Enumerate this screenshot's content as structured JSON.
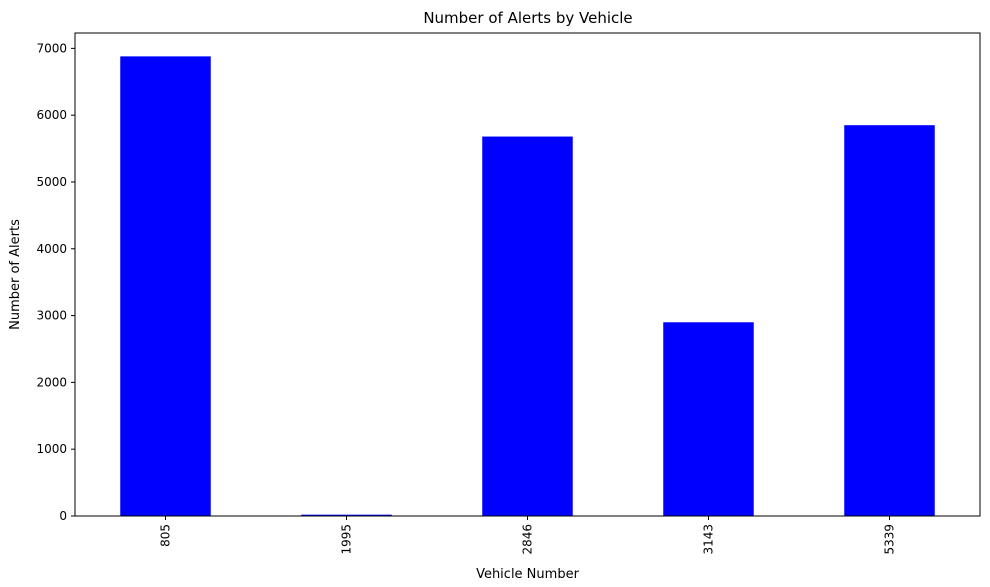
{
  "chart_data": {
    "type": "bar",
    "title": "Number of Alerts by Vehicle",
    "xlabel": "Vehicle Number",
    "ylabel": "Number of Alerts",
    "categories": [
      "805",
      "1995",
      "2846",
      "3143",
      "5339"
    ],
    "values": [
      6880,
      20,
      5680,
      2900,
      5850
    ],
    "ylim": [
      0,
      7230
    ],
    "yticks": [
      0,
      1000,
      2000,
      3000,
      4000,
      5000,
      6000,
      7000
    ],
    "bar_color": "#0000ff",
    "grid": false,
    "legend": "none"
  }
}
